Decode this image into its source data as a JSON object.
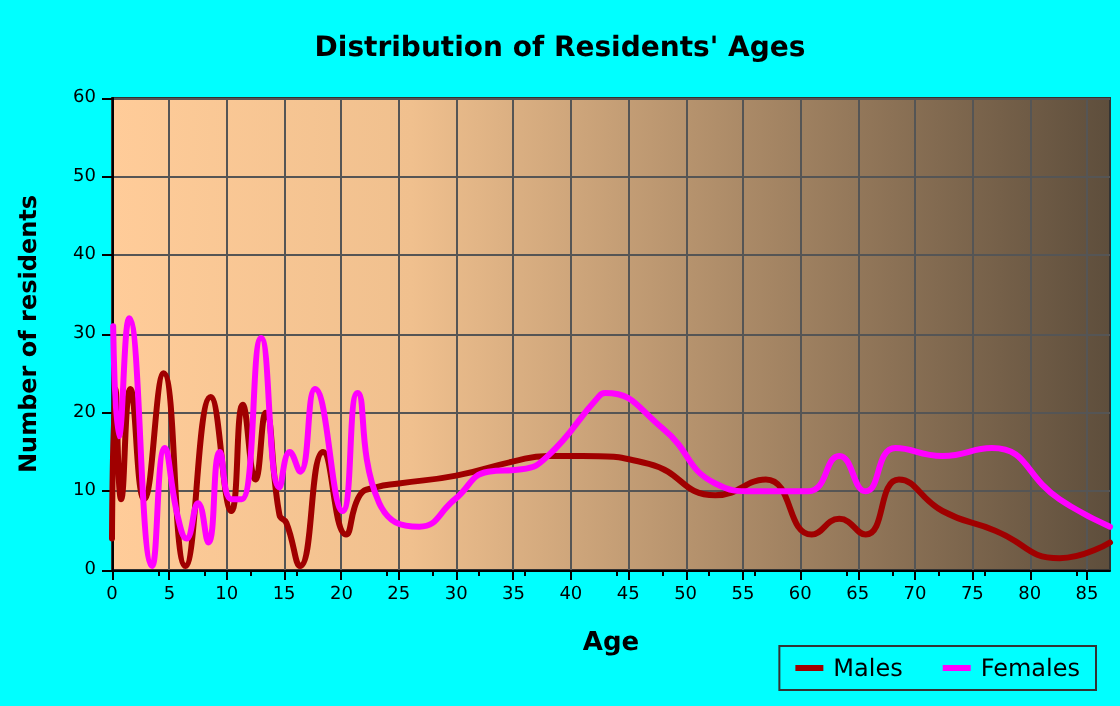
{
  "chart_data": {
    "type": "line",
    "title": "Distribution of Residents' Ages",
    "xlabel": "Age",
    "ylabel": "Number of residents",
    "xlim": [
      0,
      87
    ],
    "xticks": [
      0,
      5,
      10,
      15,
      20,
      25,
      30,
      35,
      40,
      45,
      50,
      55,
      60,
      65,
      70,
      75,
      80,
      85
    ],
    "ylim": [
      0,
      60
    ],
    "yticks": [
      0,
      10,
      20,
      30,
      40,
      50,
      60
    ],
    "grid": true,
    "legend": "bottom right",
    "marker": "none",
    "line_style": "solid",
    "series": [
      {
        "name": "Males",
        "color": "#a00000",
        "x": [
          0,
          0.3,
          0.8,
          1.6,
          2.8,
          4.5,
          6.4,
          8.6,
          10.4,
          11.4,
          12.5,
          13.4,
          14.6,
          15.2,
          16.4,
          18.4,
          20.4,
          21.6,
          23,
          25,
          30,
          35,
          38,
          41,
          46.8,
          52.6,
          57,
          61,
          63.4,
          65.7,
          68.6,
          72.4,
          77,
          82.6,
          87
        ],
        "values": [
          4,
          23,
          9,
          23,
          9,
          25,
          0.5,
          22,
          7.5,
          21,
          11.5,
          20,
          7,
          6,
          0.5,
          15,
          4.5,
          9.5,
          10.5,
          11,
          12,
          13.8,
          14.5,
          14.5,
          13.5,
          9.5,
          11.5,
          4.5,
          6.5,
          4.5,
          11.5,
          7.5,
          5,
          1.5,
          3.5
        ]
      },
      {
        "name": "Females",
        "color": "#ff00ff",
        "x": [
          0.1,
          0.6,
          1.5,
          3.5,
          4.6,
          5.7,
          6.5,
          7.5,
          8.4,
          9.4,
          10.4,
          11.3,
          13,
          14.6,
          15.5,
          16.4,
          17.7,
          20.1,
          21.4,
          23.3,
          26.8,
          29.9,
          32.8,
          35.7,
          38,
          42.4,
          43,
          48,
          52.6,
          56,
          60.7,
          63.4,
          65.7,
          68.3,
          72.4,
          76.7,
          82.6,
          87
        ],
        "values": [
          31,
          17,
          32,
          0.5,
          15.5,
          7,
          4,
          8.5,
          3.5,
          15,
          9,
          9,
          29.5,
          10.5,
          15,
          12.5,
          23,
          7.5,
          22.5,
          8.5,
          5.5,
          9,
          12.5,
          12.8,
          14.5,
          22,
          22.5,
          18,
          11,
          10,
          10,
          14.5,
          10,
          15.5,
          14.5,
          15.5,
          9,
          5.5
        ]
      }
    ]
  }
}
